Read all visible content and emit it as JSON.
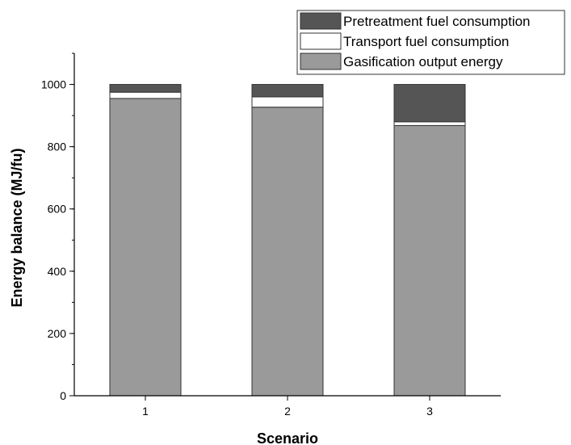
{
  "chart_data": {
    "type": "bar",
    "stacked": true,
    "categories": [
      "1",
      "2",
      "3"
    ],
    "series": [
      {
        "name": "Gasification output energy",
        "color": "#9a9a9a",
        "values": [
          955,
          927,
          868
        ]
      },
      {
        "name": "Transport fuel consumption",
        "color": "#ffffff",
        "values": [
          20,
          33,
          12
        ]
      },
      {
        "name": "Pretreatment fuel consumption",
        "color": "#555555",
        "values": [
          25,
          40,
          120
        ]
      }
    ],
    "legend_order": [
      2,
      1,
      0
    ],
    "xlabel": "Scenario",
    "ylabel": "Energy balance (MJ/fu)",
    "ylim": [
      0,
      1100
    ],
    "yticks": [
      0,
      200,
      400,
      600,
      800,
      1000
    ],
    "y_minor_step": 100,
    "grid": false,
    "legend_position": "top-right"
  }
}
